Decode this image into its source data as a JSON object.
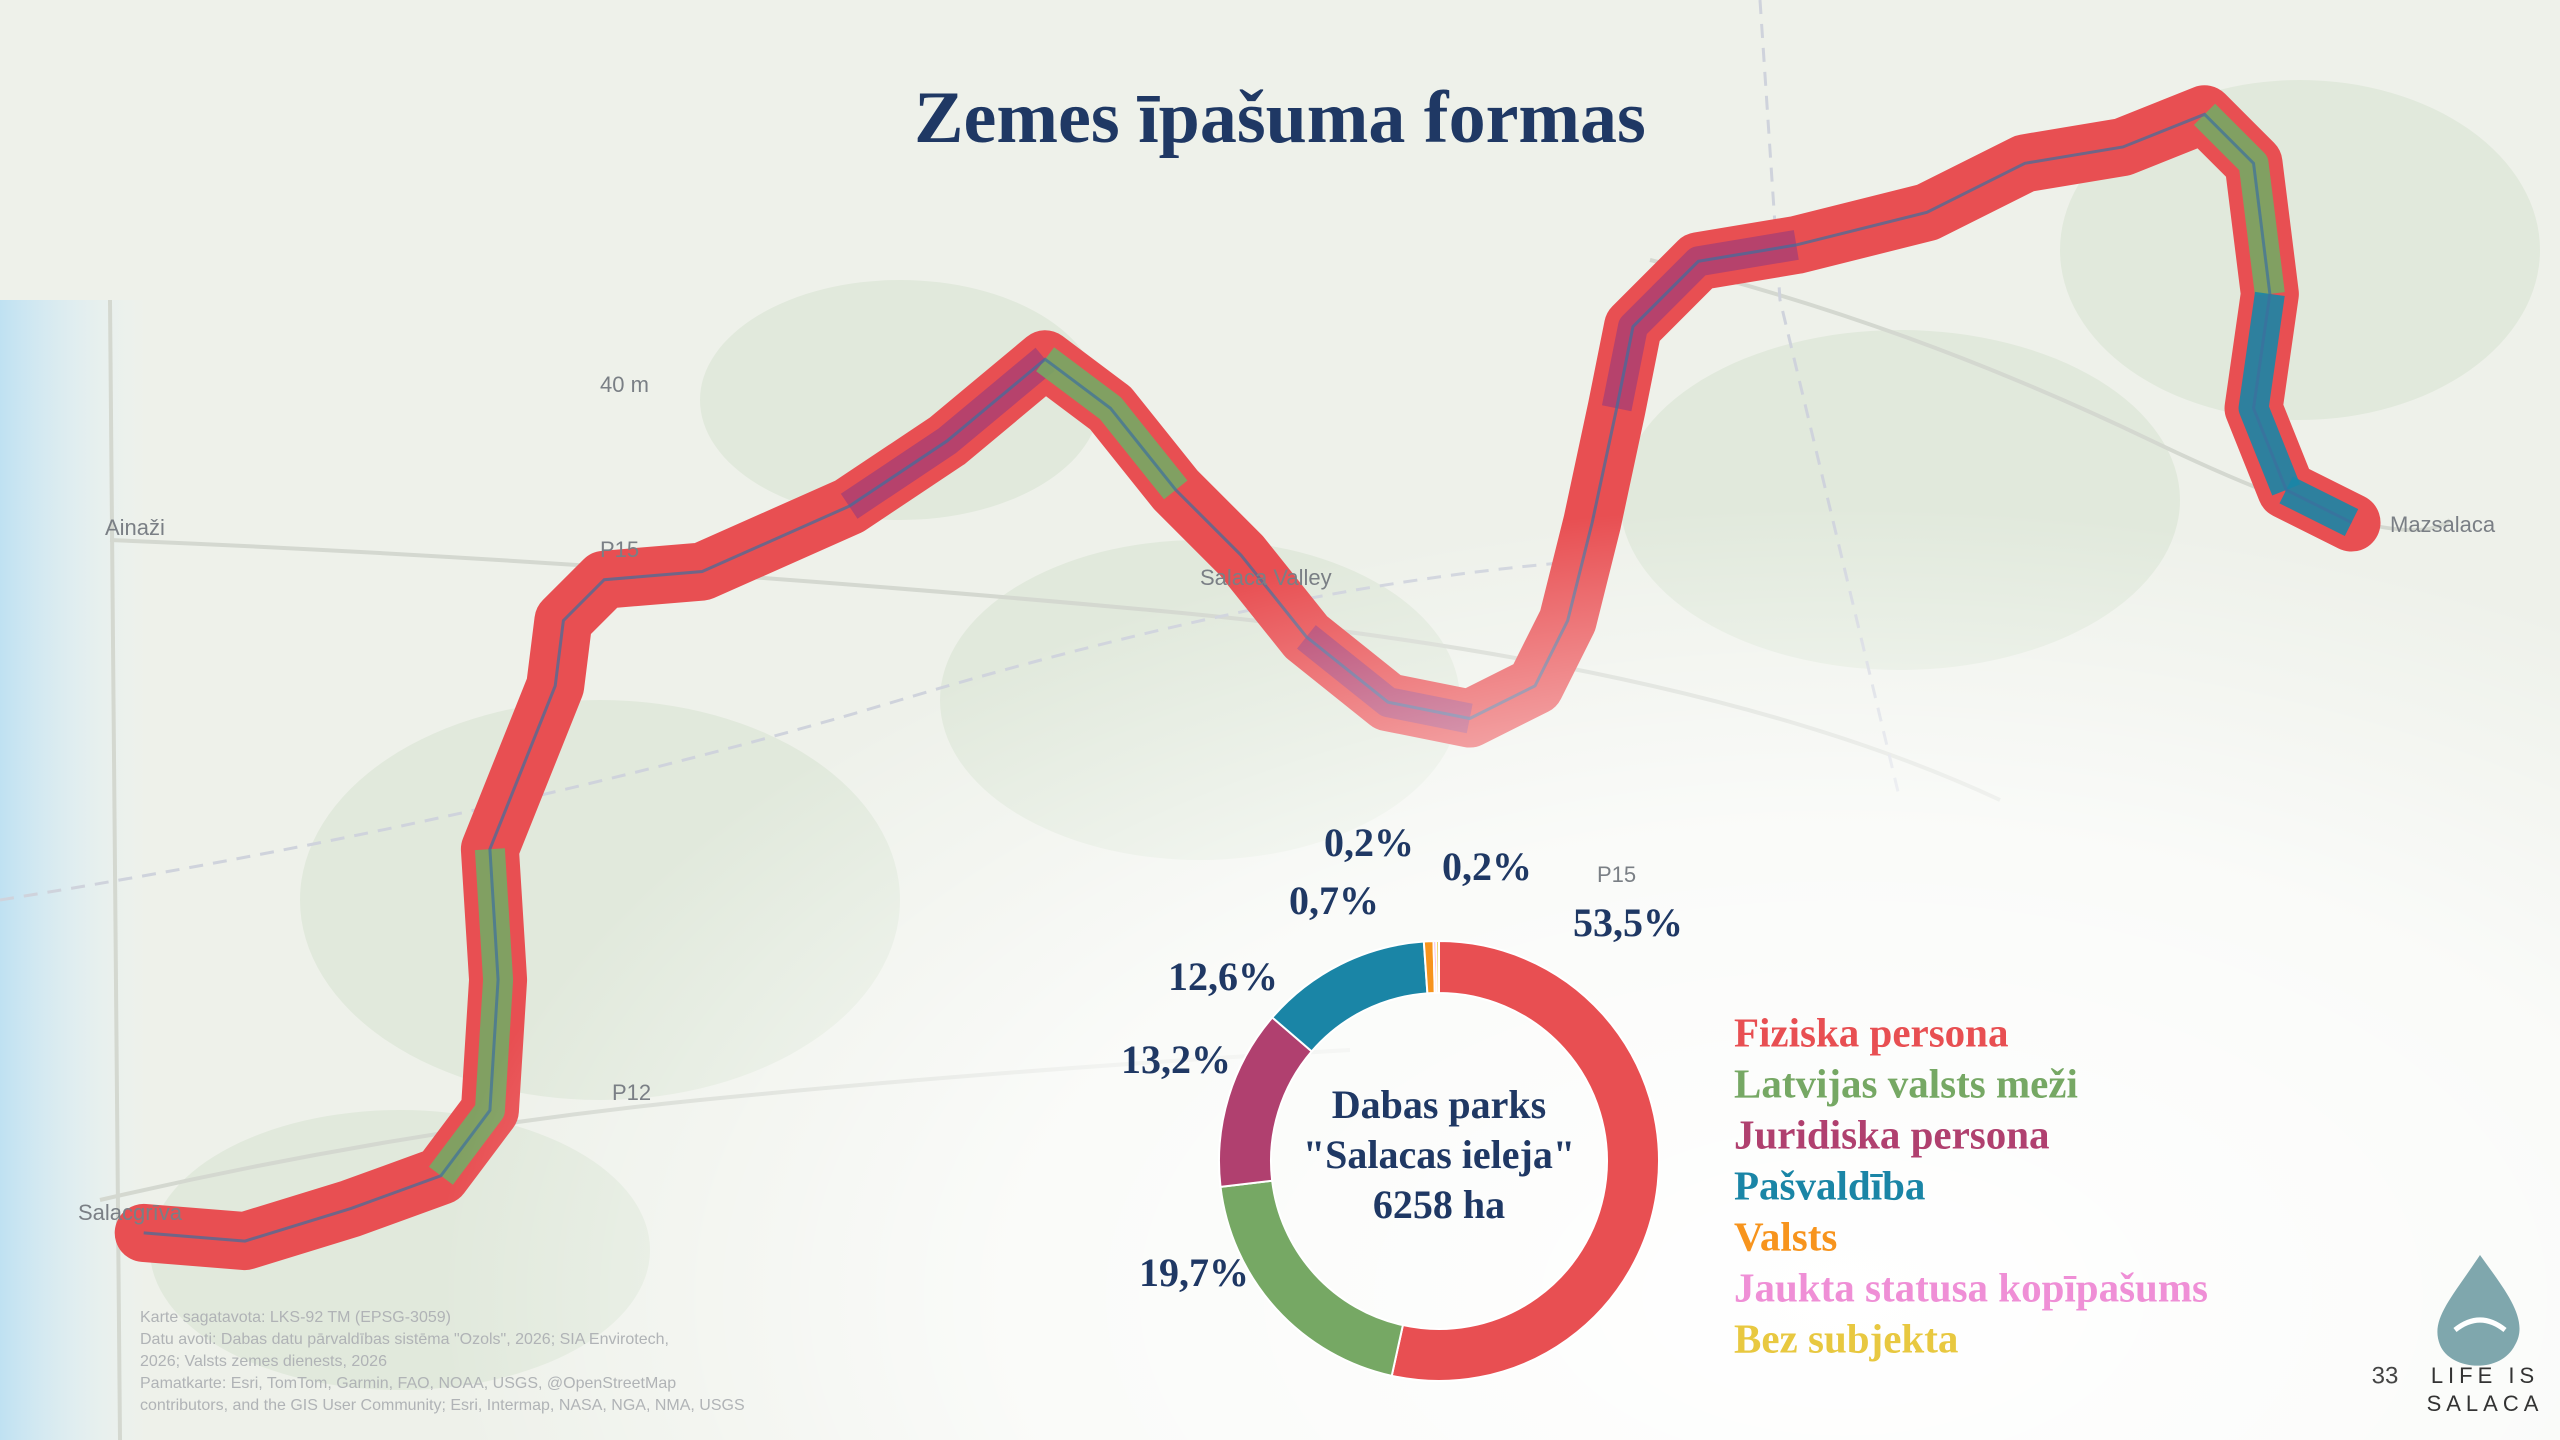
{
  "title": "Zemes īpašuma formas",
  "map_labels": [
    "Ainaži",
    "Salacgrīva",
    "Mazsalaca",
    "Salaca Valley",
    "40 m",
    "P15",
    "P15",
    "P12"
  ],
  "credits": [
    "Karte sagatavota: LKS-92 TM (EPSG-3059)",
    "Datu avoti: Dabas datu pārvaldības sistēma \"Ozols\", 2026; SIA Envirotech,",
    "2026;  Valsts zemes dienests, 2026",
    "Pamatkarte: Esri, TomTom, Garmin, FAO, NOAA, USGS, @OpenStreetMap",
    "contributors, and the GIS User Community; Esri, Intermap, NASA, NGA, NMA, USGS"
  ],
  "page_number": "33",
  "logo": [
    "LIFE IS",
    "SALACA"
  ],
  "chart_data": {
    "type": "donut",
    "center_label": [
      "Dabas parks",
      "\"Salacas ieleja\"",
      "6258 ha"
    ],
    "categories": [
      "Fiziska persona",
      "Latvijas valsts meži",
      "Juridiska persona",
      "Pašvaldība",
      "Valsts",
      "Jaukta statusa kopīpašums",
      "Bez subjekta"
    ],
    "values": [
      53.5,
      19.7,
      13.2,
      12.6,
      0.7,
      0.2,
      0.2
    ],
    "value_labels": [
      "53,5%",
      "19,7%",
      "13,2%",
      "12,6%",
      "0,7%",
      "0,2%",
      "0,2%"
    ],
    "colors": [
      "#e84f52",
      "#76a864",
      "#b0406f",
      "#1a85a6",
      "#f7941d",
      "#ef8fd6",
      "#e8c840"
    ]
  }
}
